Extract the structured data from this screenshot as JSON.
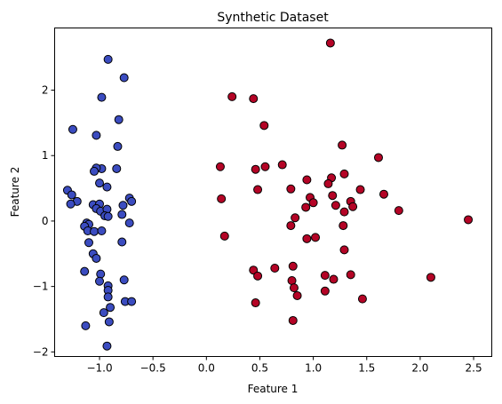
{
  "chart_data": {
    "type": "scatter",
    "title": "Synthetic Dataset",
    "xlabel": "Feature 1",
    "ylabel": "Feature 2",
    "xlim": [
      -1.42,
      2.67
    ],
    "ylim": [
      -2.07,
      2.95
    ],
    "xticks": [
      -1.0,
      -0.5,
      0.0,
      0.5,
      1.0,
      1.5,
      2.0,
      2.5
    ],
    "xtick_labels": [
      "−1.0",
      "−0.5",
      "0.0",
      "0.5",
      "1.0",
      "1.5",
      "2.0",
      "2.5"
    ],
    "yticks": [
      -2,
      -1,
      0,
      1,
      2
    ],
    "ytick_labels": [
      "−2",
      "−1",
      "0",
      "1",
      "2"
    ],
    "grid": false,
    "legend": "none",
    "series": [
      {
        "color": "#3b4cc0",
        "points": [
          [
            -0.92,
            2.47
          ],
          [
            -0.77,
            2.19
          ],
          [
            -0.98,
            1.89
          ],
          [
            -0.82,
            1.55
          ],
          [
            -1.25,
            1.4
          ],
          [
            -1.03,
            1.31
          ],
          [
            -0.83,
            1.14
          ],
          [
            -0.98,
            0.8
          ],
          [
            -1.03,
            0.81
          ],
          [
            -0.84,
            0.8
          ],
          [
            -1.05,
            0.76
          ],
          [
            -1.0,
            0.58
          ],
          [
            -0.93,
            0.52
          ],
          [
            -1.3,
            0.47
          ],
          [
            -1.26,
            0.4
          ],
          [
            -0.72,
            0.35
          ],
          [
            -0.7,
            0.3
          ],
          [
            -1.21,
            0.3
          ],
          [
            -1.27,
            0.26
          ],
          [
            -1.06,
            0.25
          ],
          [
            -1.0,
            0.26
          ],
          [
            -0.78,
            0.24
          ],
          [
            -1.03,
            0.19
          ],
          [
            -0.99,
            0.15
          ],
          [
            -0.93,
            0.18
          ],
          [
            -0.95,
            0.08
          ],
          [
            -0.79,
            0.1
          ],
          [
            -0.92,
            0.07
          ],
          [
            -0.72,
            -0.03
          ],
          [
            -1.12,
            -0.03
          ],
          [
            -1.1,
            -0.05
          ],
          [
            -1.14,
            -0.08
          ],
          [
            -1.11,
            -0.15
          ],
          [
            -1.05,
            -0.16
          ],
          [
            -0.98,
            -0.15
          ],
          [
            -1.1,
            -0.33
          ],
          [
            -0.79,
            -0.32
          ],
          [
            -1.06,
            -0.5
          ],
          [
            -1.03,
            -0.57
          ],
          [
            -1.14,
            -0.77
          ],
          [
            -0.99,
            -0.81
          ],
          [
            -0.77,
            -0.9
          ],
          [
            -1.0,
            -0.92
          ],
          [
            -0.92,
            -0.99
          ],
          [
            -0.92,
            -1.06
          ],
          [
            -0.92,
            -1.16
          ],
          [
            -0.76,
            -1.23
          ],
          [
            -0.7,
            -1.23
          ],
          [
            -0.9,
            -1.32
          ],
          [
            -0.96,
            -1.4
          ],
          [
            -0.91,
            -1.54
          ],
          [
            -1.13,
            -1.6
          ],
          [
            -0.93,
            -1.91
          ]
        ]
      },
      {
        "color": "#b40426",
        "points": [
          [
            1.16,
            2.72
          ],
          [
            0.24,
            1.9
          ],
          [
            0.44,
            1.87
          ],
          [
            0.54,
            1.46
          ],
          [
            1.27,
            1.16
          ],
          [
            1.61,
            0.97
          ],
          [
            0.71,
            0.86
          ],
          [
            0.55,
            0.83
          ],
          [
            0.13,
            0.83
          ],
          [
            0.46,
            0.79
          ],
          [
            1.29,
            0.72
          ],
          [
            1.17,
            0.66
          ],
          [
            0.94,
            0.63
          ],
          [
            1.14,
            0.57
          ],
          [
            1.44,
            0.48
          ],
          [
            0.48,
            0.48
          ],
          [
            0.79,
            0.49
          ],
          [
            1.66,
            0.41
          ],
          [
            1.18,
            0.39
          ],
          [
            0.97,
            0.36
          ],
          [
            0.14,
            0.34
          ],
          [
            1.35,
            0.3
          ],
          [
            1.0,
            0.28
          ],
          [
            1.21,
            0.24
          ],
          [
            0.93,
            0.21
          ],
          [
            1.37,
            0.22
          ],
          [
            1.8,
            0.16
          ],
          [
            0.83,
            0.05
          ],
          [
            1.29,
            0.14
          ],
          [
            2.45,
            0.02
          ],
          [
            0.79,
            -0.07
          ],
          [
            1.28,
            -0.07
          ],
          [
            1.02,
            -0.25
          ],
          [
            0.94,
            -0.27
          ],
          [
            0.17,
            -0.23
          ],
          [
            1.29,
            -0.44
          ],
          [
            0.81,
            -0.69
          ],
          [
            0.64,
            -0.72
          ],
          [
            0.44,
            -0.75
          ],
          [
            0.48,
            -0.84
          ],
          [
            1.11,
            -0.83
          ],
          [
            1.35,
            -0.82
          ],
          [
            0.8,
            -0.91
          ],
          [
            2.1,
            -0.86
          ],
          [
            1.19,
            -0.89
          ],
          [
            0.82,
            -1.02
          ],
          [
            1.11,
            -1.07
          ],
          [
            0.85,
            -1.14
          ],
          [
            1.46,
            -1.19
          ],
          [
            0.46,
            -1.25
          ],
          [
            0.81,
            -1.52
          ]
        ]
      }
    ]
  }
}
